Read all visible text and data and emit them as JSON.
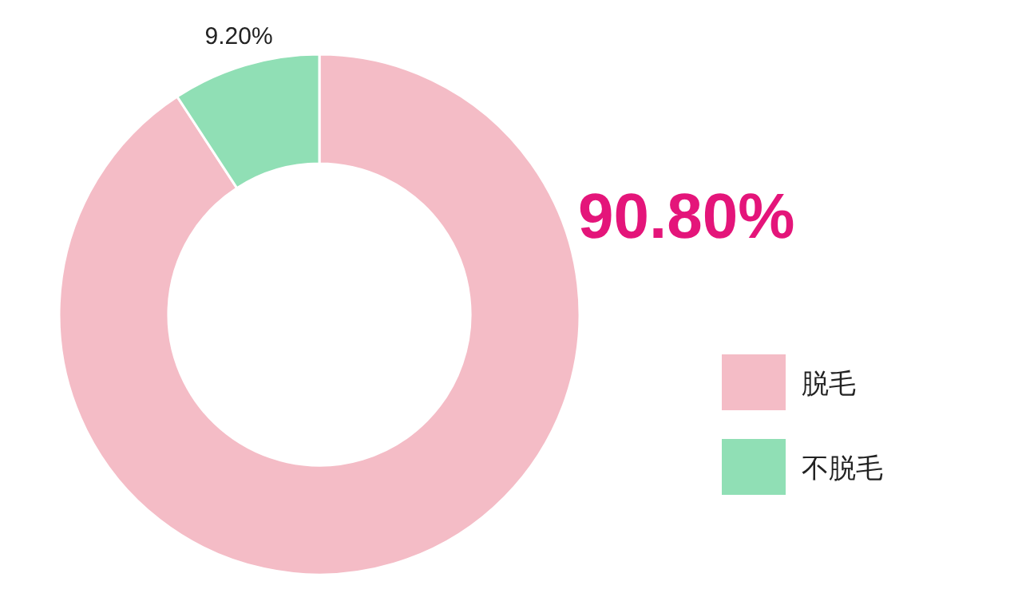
{
  "chart_data": {
    "type": "donut",
    "categories": [
      "脱毛",
      "不脱毛"
    ],
    "values": [
      90.8,
      9.2
    ],
    "colors": [
      "#f4bcc6",
      "#90dfb5"
    ],
    "value_labels": [
      "90.80%",
      "9.20%"
    ],
    "legend": "right"
  }
}
